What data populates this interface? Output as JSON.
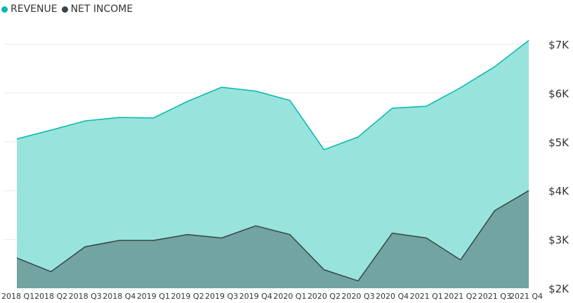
{
  "chart_data": {
    "type": "area",
    "categories": [
      "2018 Q1",
      "2018 Q2",
      "2018 Q3",
      "2018 Q4",
      "2019 Q1",
      "2019 Q2",
      "2019 Q3",
      "2019 Q4",
      "2020 Q1",
      "2020 Q2",
      "2020 Q3",
      "2020 Q4",
      "2021 Q1",
      "2021 Q2",
      "2021 Q3",
      "2021 Q4"
    ],
    "series": [
      {
        "name": "REVENUE",
        "color": "#01B8AA",
        "fill": "#99E3DD",
        "values": [
          5060,
          5240,
          5430,
          5500,
          5490,
          5830,
          6120,
          6040,
          5850,
          4840,
          5100,
          5690,
          5730,
          6110,
          6540,
          7080
        ]
      },
      {
        "name": "NET INCOME",
        "color": "#374649",
        "fill": "#72A4A1",
        "values": [
          2620,
          2340,
          2850,
          2980,
          2980,
          3100,
          3030,
          3280,
          3100,
          2380,
          2150,
          3130,
          3030,
          2580,
          3590,
          4000
        ]
      }
    ],
    "y_ticks": [
      "$2K",
      "$3K",
      "$4K",
      "$5K",
      "$6K",
      "$7K"
    ],
    "ylim": [
      2000,
      7000
    ],
    "y_axis_side": "right",
    "grid": true,
    "legend": "top-left",
    "xlabel": "",
    "ylabel": ""
  }
}
